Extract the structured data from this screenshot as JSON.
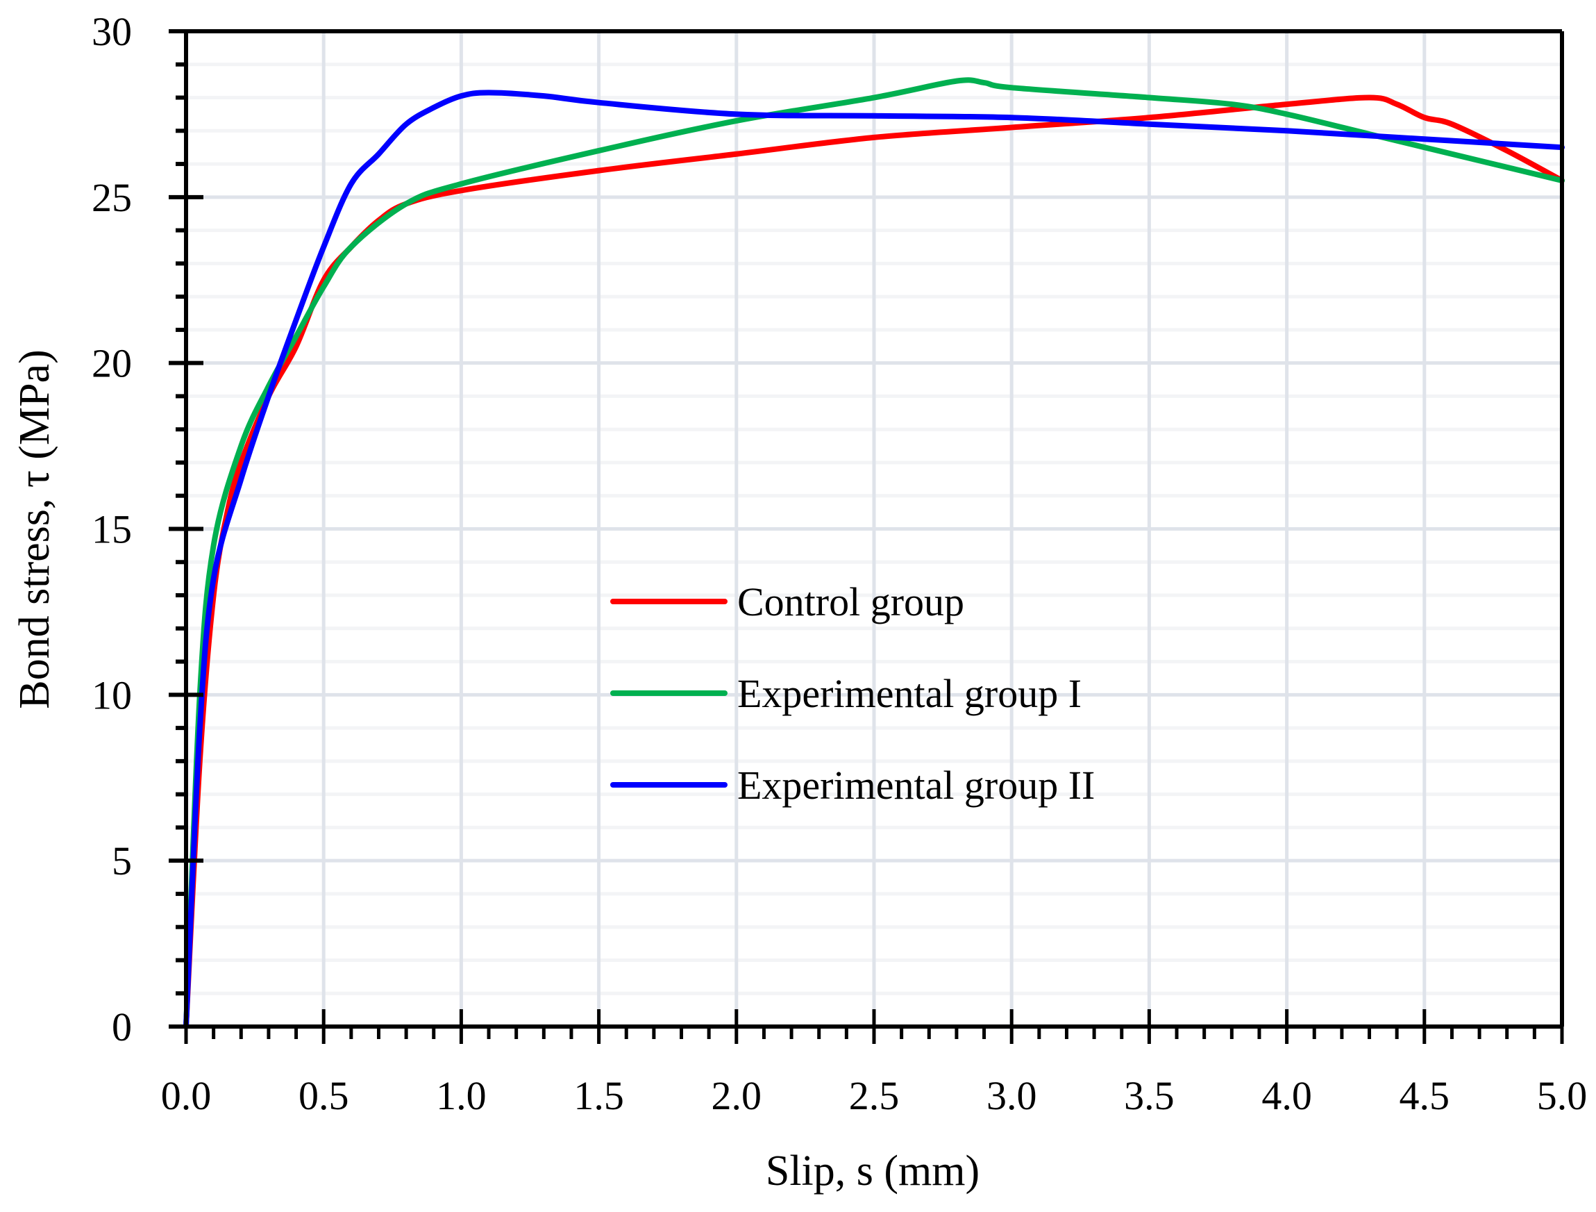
{
  "chart_data": {
    "type": "line",
    "title": "",
    "xlabel": "Slip, s (mm)",
    "ylabel": "Bond stress, τ (MPa)",
    "xlim": [
      0,
      5
    ],
    "ylim": [
      0,
      30
    ],
    "x_ticks": [
      "0.0",
      "0.5",
      "1.0",
      "1.5",
      "2.0",
      "2.5",
      "3.0",
      "3.5",
      "4.0",
      "4.5",
      "5.0"
    ],
    "y_ticks": [
      "0",
      "5",
      "10",
      "15",
      "20",
      "25",
      "30"
    ],
    "grid": true,
    "legend_position": "center",
    "series": [
      {
        "name": "Control group",
        "color": "#ff0000",
        "points": [
          [
            0,
            0
          ],
          [
            0.05,
            8
          ],
          [
            0.1,
            13
          ],
          [
            0.15,
            15.5
          ],
          [
            0.2,
            17
          ],
          [
            0.3,
            19
          ],
          [
            0.4,
            20.5
          ],
          [
            0.5,
            22.5
          ],
          [
            0.6,
            23.5
          ],
          [
            0.7,
            24.3
          ],
          [
            0.8,
            24.8
          ],
          [
            1.0,
            25.2
          ],
          [
            1.5,
            25.8
          ],
          [
            2.0,
            26.3
          ],
          [
            2.5,
            26.8
          ],
          [
            3.0,
            27.1
          ],
          [
            3.5,
            27.4
          ],
          [
            4.0,
            27.8
          ],
          [
            4.3,
            28.0
          ],
          [
            4.4,
            27.8
          ],
          [
            4.5,
            27.4
          ],
          [
            4.6,
            27.2
          ],
          [
            4.8,
            26.4
          ],
          [
            5.0,
            25.5
          ]
        ]
      },
      {
        "name": "Experimental group I",
        "color": "#00b050",
        "points": [
          [
            0,
            0
          ],
          [
            0.05,
            10
          ],
          [
            0.1,
            14.5
          ],
          [
            0.2,
            17.5
          ],
          [
            0.3,
            19.3
          ],
          [
            0.4,
            20.8
          ],
          [
            0.5,
            22.3
          ],
          [
            0.6,
            23.5
          ],
          [
            0.8,
            24.8
          ],
          [
            1.0,
            25.4
          ],
          [
            1.5,
            26.4
          ],
          [
            2.0,
            27.3
          ],
          [
            2.5,
            28.0
          ],
          [
            2.8,
            28.5
          ],
          [
            2.9,
            28.45
          ],
          [
            3.0,
            28.3
          ],
          [
            3.5,
            28.0
          ],
          [
            3.8,
            27.8
          ],
          [
            4.0,
            27.5
          ],
          [
            4.3,
            26.9
          ],
          [
            4.5,
            26.5
          ],
          [
            5.0,
            25.5
          ]
        ]
      },
      {
        "name": "Experimental group II",
        "color": "#0000ff",
        "points": [
          [
            0,
            0
          ],
          [
            0.05,
            9
          ],
          [
            0.1,
            13.5
          ],
          [
            0.2,
            16.5
          ],
          [
            0.3,
            19
          ],
          [
            0.4,
            21.3
          ],
          [
            0.5,
            23.5
          ],
          [
            0.6,
            25.4
          ],
          [
            0.7,
            26.3
          ],
          [
            0.8,
            27.2
          ],
          [
            0.9,
            27.7
          ],
          [
            1.0,
            28.05
          ],
          [
            1.1,
            28.15
          ],
          [
            1.3,
            28.05
          ],
          [
            1.5,
            27.85
          ],
          [
            2.0,
            27.5
          ],
          [
            2.5,
            27.45
          ],
          [
            3.0,
            27.4
          ],
          [
            3.5,
            27.2
          ],
          [
            4.0,
            27.0
          ],
          [
            4.5,
            26.75
          ],
          [
            5.0,
            26.5
          ]
        ]
      }
    ]
  }
}
